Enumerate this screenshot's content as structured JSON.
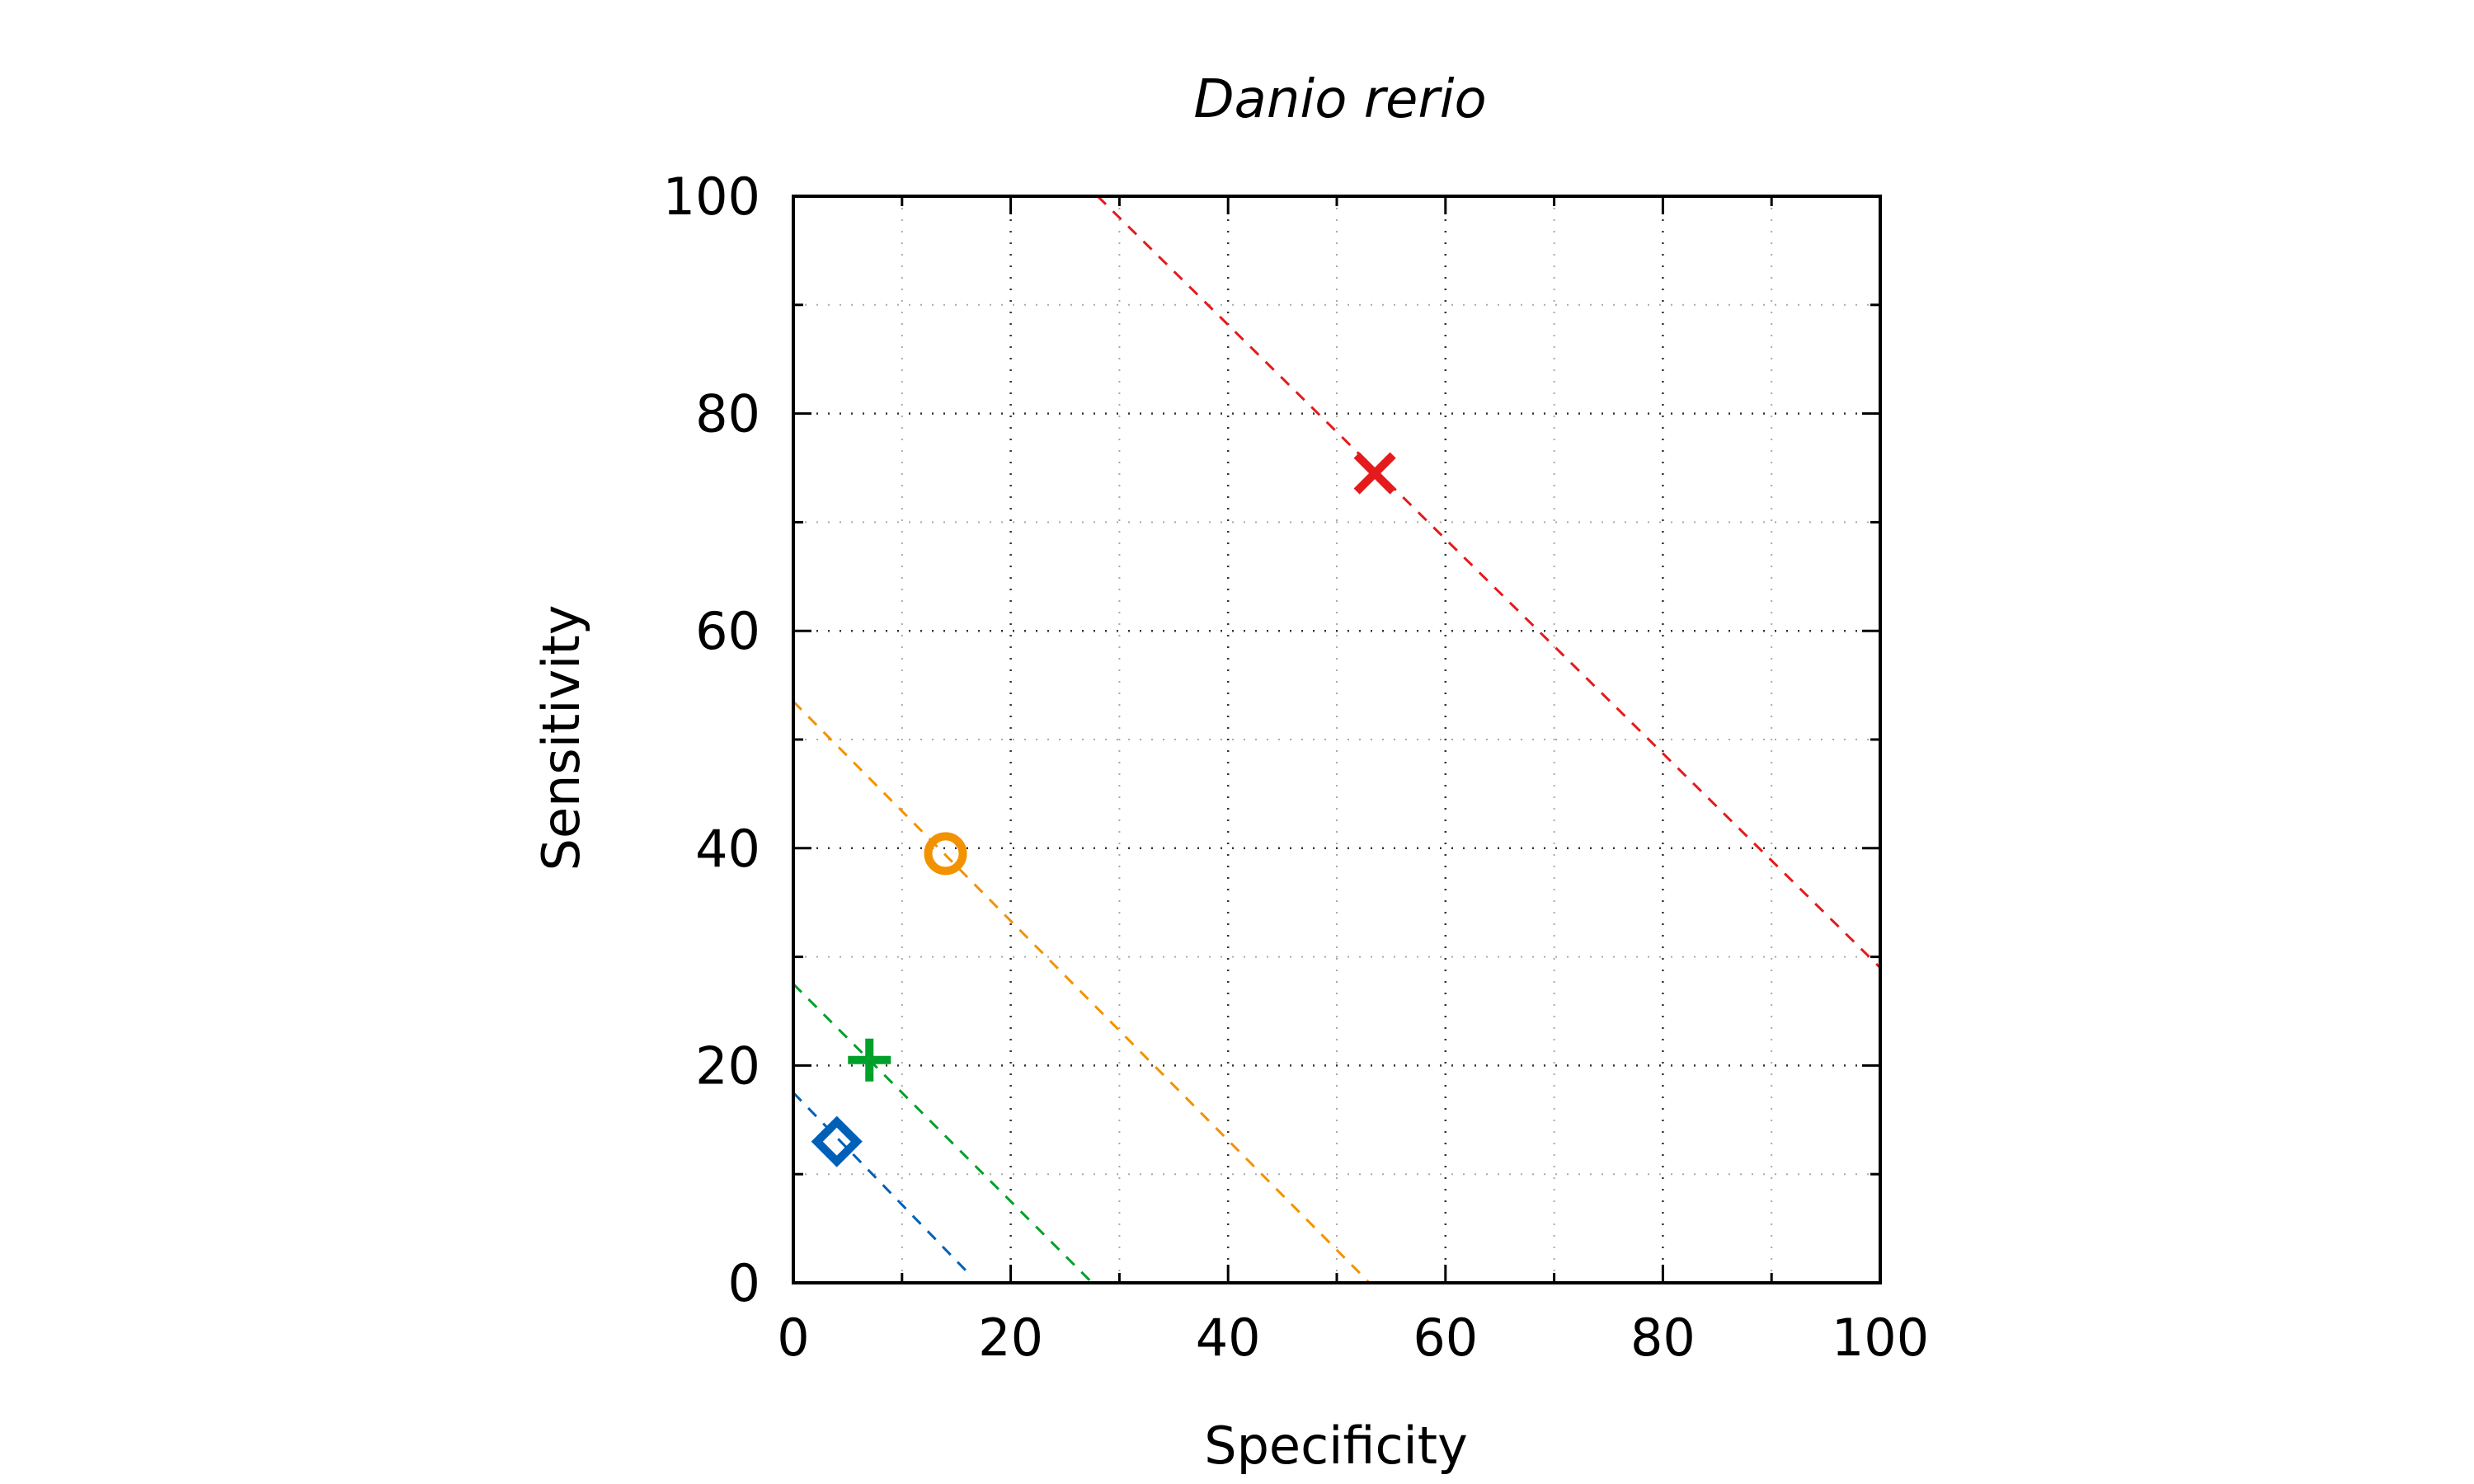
{
  "chart_data": {
    "type": "scatter",
    "title": "Danio rerio",
    "xlabel": "Specificity",
    "ylabel": "Sensitivity",
    "xlim": [
      0,
      100
    ],
    "ylim": [
      0,
      100
    ],
    "x_ticks": [
      0,
      20,
      40,
      60,
      80,
      100
    ],
    "y_ticks": [
      0,
      20,
      40,
      60,
      80,
      100
    ],
    "x_minor_ticks": [
      10,
      30,
      50,
      70,
      90
    ],
    "y_minor_ticks": [
      10,
      30,
      50,
      70,
      90
    ],
    "grid": true,
    "legend": "none",
    "series": [
      {
        "marker": "cross",
        "color": "#e41a1c",
        "points": [
          {
            "x": 53.5,
            "y": 74.5
          }
        ],
        "reference_line": [
          {
            "x": 28,
            "y": 100
          },
          {
            "x": 100,
            "y": 29
          }
        ]
      },
      {
        "marker": "circle",
        "color": "#f39200",
        "points": [
          {
            "x": 14,
            "y": 39.5
          }
        ],
        "reference_line": [
          {
            "x": 0,
            "y": 53.5
          },
          {
            "x": 53,
            "y": 0
          }
        ]
      },
      {
        "marker": "plus",
        "color": "#00a02a",
        "points": [
          {
            "x": 7,
            "y": 20.5
          }
        ],
        "reference_line": [
          {
            "x": 0,
            "y": 27.5
          },
          {
            "x": 27.5,
            "y": 0
          }
        ]
      },
      {
        "marker": "diamond",
        "color": "#0060b8",
        "points": [
          {
            "x": 4,
            "y": 13
          }
        ],
        "reference_line": [
          {
            "x": 0,
            "y": 17.5
          },
          {
            "x": 16,
            "y": 1
          }
        ]
      }
    ]
  }
}
